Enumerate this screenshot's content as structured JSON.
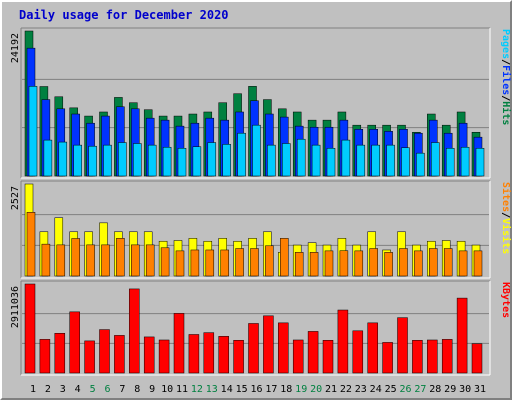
{
  "title": "Daily usage for December 2020",
  "colors": {
    "pages": "#00ccff",
    "files": "#0033ff",
    "hits": "#008040",
    "visits": "#ffff00",
    "sites": "#ff8000",
    "kbytes": "#ff0000",
    "legend_separator": "#000000",
    "day_label": "#000000",
    "weekend_label": "#008040"
  },
  "legends": {
    "top": [
      {
        "key": "pages",
        "text": "Pages"
      },
      {
        "key": "sep",
        "text": "/"
      },
      {
        "key": "files",
        "text": "Files"
      },
      {
        "key": "sep",
        "text": "/"
      },
      {
        "key": "hits",
        "text": "Hits"
      }
    ],
    "middle": [
      {
        "key": "sites",
        "text": "Sites"
      },
      {
        "key": "sep",
        "text": "/"
      },
      {
        "key": "visits",
        "text": "Visits"
      }
    ],
    "bottom": [
      {
        "key": "kbytes",
        "text": "KBytes"
      }
    ]
  },
  "chart_data": [
    {
      "type": "bar",
      "panel": "top",
      "ymax": 24192,
      "ymax_label": "24192",
      "x": [
        1,
        2,
        3,
        4,
        5,
        6,
        7,
        8,
        9,
        10,
        11,
        12,
        13,
        14,
        15,
        16,
        17,
        18,
        19,
        20,
        21,
        22,
        23,
        24,
        25,
        26,
        27,
        28,
        29,
        30,
        31
      ],
      "weekend_days": [
        5,
        6,
        12,
        13,
        19,
        20,
        26,
        27
      ],
      "series": [
        {
          "name": "Hits",
          "values": [
            24192,
            14930,
            13220,
            11370,
            10000,
            10680,
            13110,
            12230,
            11060,
            10000,
            10000,
            10340,
            10680,
            12230,
            13730,
            14960,
            12750,
            11210,
            10680,
            9320,
            9320,
            10680,
            8480,
            8480,
            8480,
            8480,
            7300,
            10340,
            8480,
            10680,
            7300
          ]
        },
        {
          "name": "Files",
          "values": [
            21330,
            12750,
            11210,
            10340,
            8810,
            10000,
            11550,
            11210,
            9650,
            9320,
            8320,
            8810,
            9650,
            9320,
            10680,
            12560,
            10340,
            9830,
            8320,
            8140,
            8140,
            9320,
            7800,
            7800,
            7460,
            7800,
            7140,
            9320,
            7140,
            8810,
            6480
          ]
        },
        {
          "name": "Pages",
          "values": [
            14960,
            5990,
            5660,
            5150,
            4970,
            5150,
            5580,
            5420,
            5150,
            4800,
            4630,
            4880,
            5580,
            5280,
            7140,
            8480,
            5150,
            5420,
            6140,
            5150,
            4630,
            5990,
            5150,
            5150,
            5150,
            4720,
            3810,
            5580,
            4630,
            4800,
            4630
          ]
        }
      ]
    },
    {
      "type": "bar",
      "panel": "middle",
      "ymax": 2527,
      "ymax_label": "2527",
      "x": [
        1,
        2,
        3,
        4,
        5,
        6,
        7,
        8,
        9,
        10,
        11,
        12,
        13,
        14,
        15,
        16,
        17,
        18,
        19,
        20,
        21,
        22,
        23,
        24,
        25,
        26,
        27,
        28,
        29,
        30,
        31
      ],
      "weekend_days": [
        5,
        6,
        12,
        13,
        19,
        20,
        26,
        27
      ],
      "series": [
        {
          "name": "Visits",
          "values": [
            2527,
            1215,
            1600,
            1215,
            1215,
            1460,
            1215,
            1215,
            1215,
            955,
            975,
            1035,
            955,
            1035,
            955,
            1035,
            1215,
            650,
            850,
            915,
            850,
            1035,
            850,
            1215,
            715,
            1215,
            850,
            955,
            975,
            955,
            850
          ]
        },
        {
          "name": "Sites",
          "values": [
            1750,
            875,
            855,
            1030,
            855,
            855,
            1035,
            855,
            855,
            775,
            690,
            715,
            715,
            715,
            755,
            755,
            830,
            1035,
            650,
            650,
            690,
            695,
            690,
            755,
            650,
            755,
            690,
            755,
            755,
            690,
            690
          ]
        }
      ]
    },
    {
      "type": "bar",
      "panel": "bottom",
      "ymax": 2911036,
      "ymax_label": "2911036",
      "x": [
        1,
        2,
        3,
        4,
        5,
        6,
        7,
        8,
        9,
        10,
        11,
        12,
        13,
        14,
        15,
        16,
        17,
        18,
        19,
        20,
        21,
        22,
        23,
        24,
        25,
        26,
        27,
        28,
        29,
        30,
        31
      ],
      "weekend_days": [
        5,
        6,
        12,
        13,
        19,
        20,
        26,
        27
      ],
      "series": [
        {
          "name": "KBytes",
          "values": [
            2911036,
            1100000,
            1300000,
            2000000,
            1050000,
            1420000,
            1230000,
            2750000,
            1180000,
            1080000,
            1950000,
            1260000,
            1320000,
            1200000,
            1070000,
            1620000,
            1870000,
            1640000,
            1080000,
            1360000,
            1070000,
            2060000,
            1380000,
            1640000,
            1000000,
            1810000,
            1070000,
            1080000,
            1100000,
            2450000,
            960000
          ]
        }
      ]
    }
  ]
}
